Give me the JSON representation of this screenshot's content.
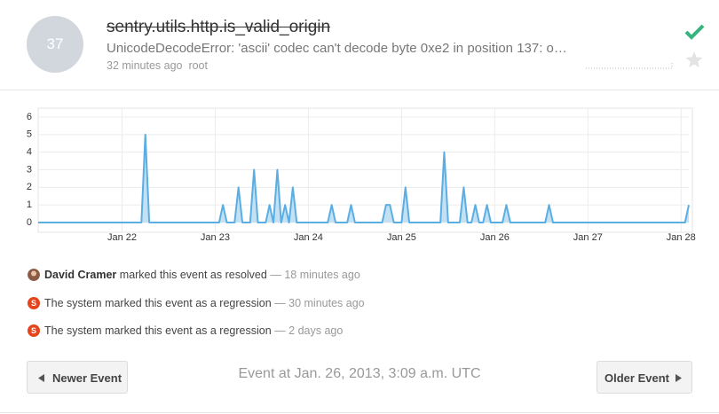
{
  "header": {
    "count": "37",
    "title": "sentry.utils.http.is_valid_origin",
    "message": "UnicodeDecodeError: 'ascii' codec can't decode byte 0xe2 in position 137: o…",
    "time": "32 minutes ago",
    "user": "root"
  },
  "chart_data": {
    "type": "area",
    "color": "#5aaee3",
    "fill": "#c3e1f3",
    "grid": true,
    "x": [
      21.1,
      22.208,
      22.25,
      22.292,
      23.042,
      23.083,
      23.125,
      23.208,
      23.25,
      23.292,
      23.375,
      23.417,
      23.458,
      23.542,
      23.583,
      23.625,
      23.667,
      23.708,
      23.75,
      23.792,
      23.833,
      23.875,
      24.208,
      24.25,
      24.292,
      24.417,
      24.458,
      24.5,
      24.792,
      24.833,
      24.875,
      24.917,
      25.0,
      25.042,
      25.083,
      25.417,
      25.458,
      25.5,
      25.625,
      25.667,
      25.708,
      25.75,
      25.792,
      25.833,
      25.875,
      25.917,
      25.958,
      26.083,
      26.125,
      26.167,
      26.542,
      26.583,
      26.625,
      28.042,
      28.083
    ],
    "values": [
      0,
      0,
      5,
      0,
      0,
      1,
      0,
      0,
      2,
      0,
      0,
      3,
      0,
      0,
      1,
      0,
      3,
      0,
      1,
      0,
      2,
      0,
      0,
      1,
      0,
      0,
      1,
      0,
      0,
      1,
      1,
      0,
      0,
      2,
      0,
      0,
      4,
      0,
      0,
      2,
      0,
      0,
      1,
      0,
      0,
      1,
      0,
      0,
      1,
      0,
      0,
      1,
      0,
      0,
      1
    ],
    "xlim": [
      21.1,
      28.083
    ],
    "ylim": [
      0,
      6
    ],
    "yticks": [
      0,
      1,
      2,
      3,
      4,
      5,
      6
    ],
    "xticks": [
      {
        "value": 22,
        "label": "Jan 22"
      },
      {
        "value": 23,
        "label": "Jan 23"
      },
      {
        "value": 24,
        "label": "Jan 24"
      },
      {
        "value": 25,
        "label": "Jan 25"
      },
      {
        "value": 26,
        "label": "Jan 26"
      },
      {
        "value": 27,
        "label": "Jan 27"
      },
      {
        "value": 28,
        "label": "Jan 28"
      }
    ]
  },
  "activity": [
    {
      "actor": "David Cramer",
      "text": "marked this event as resolved",
      "dash": "—",
      "time": "18 minutes ago"
    },
    {
      "avatar": "S",
      "text": "The system marked this event as a regression",
      "dash": "—",
      "time": "30 minutes ago"
    },
    {
      "avatar": "S",
      "text": "The system marked this event as a regression",
      "dash": "—",
      "time": "2 days ago"
    }
  ],
  "footer": {
    "newer": "Newer Event",
    "older": "Older Event",
    "event_time": "Event at Jan. 26, 2013, 3:09 a.m. UTC"
  }
}
